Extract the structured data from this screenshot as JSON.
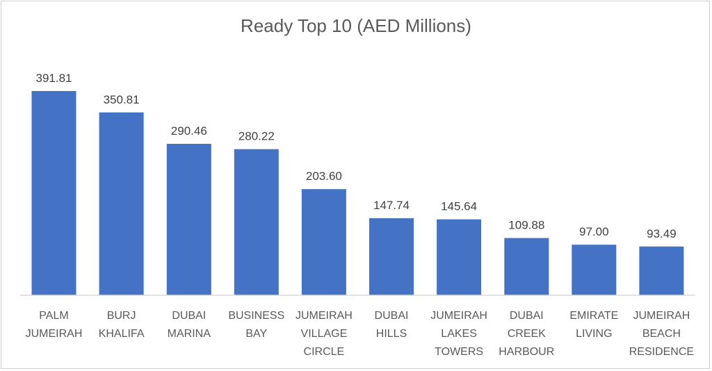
{
  "chart_data": {
    "type": "bar",
    "title": "Ready Top 10 (AED Millions)",
    "categories": [
      [
        "PALM",
        "JUMEIRAH"
      ],
      [
        "BURJ",
        "KHALIFA"
      ],
      [
        "DUBAI",
        "MARINA"
      ],
      [
        "BUSINESS",
        "BAY"
      ],
      [
        "JUMEIRAH",
        "VILLAGE",
        "CIRCLE"
      ],
      [
        "DUBAI",
        "HILLS"
      ],
      [
        "JUMEIRAH",
        "LAKES",
        "TOWERS"
      ],
      [
        "DUBAI",
        "CREEK",
        "HARBOUR"
      ],
      [
        "EMIRATE",
        "LIVING"
      ],
      [
        "JUMEIRAH",
        "BEACH",
        "RESIDENCE"
      ]
    ],
    "values": [
      391.81,
      350.81,
      290.46,
      280.22,
      203.6,
      147.74,
      145.64,
      109.88,
      97.0,
      93.49
    ],
    "value_labels": [
      "391.81",
      "350.81",
      "290.46",
      "280.22",
      "203.60",
      "147.74",
      "145.64",
      "109.88",
      "97.00",
      "93.49"
    ],
    "ylim": [
      0,
      391.81
    ],
    "grid": false,
    "legend": "none",
    "bar_color": "#4472C4"
  }
}
